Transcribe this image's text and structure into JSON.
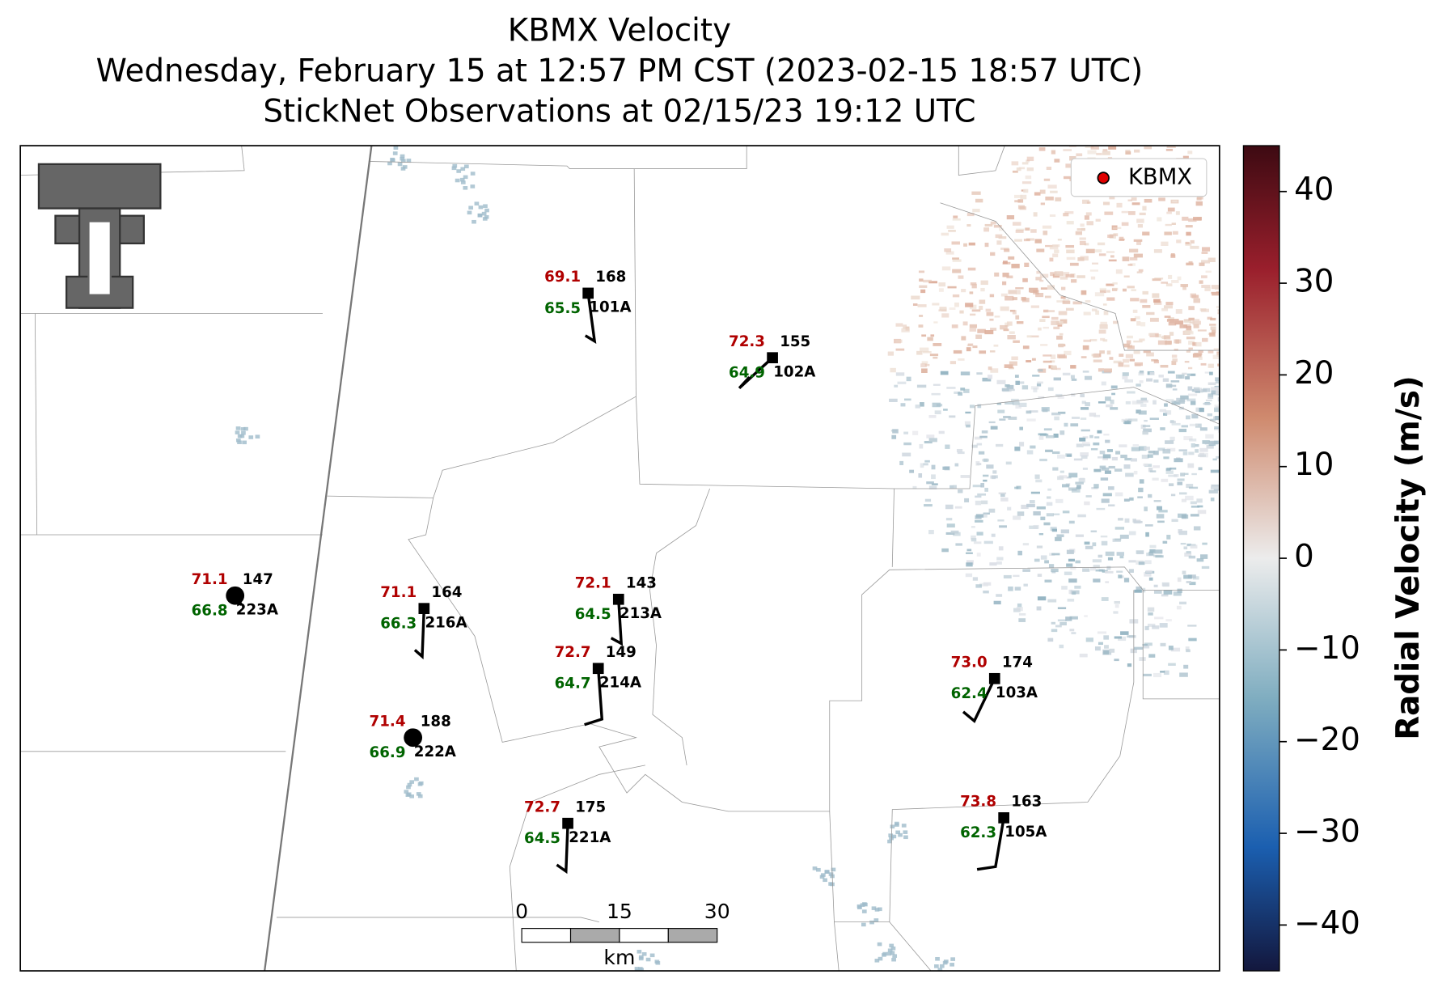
{
  "title": [
    "KBMX Velocity",
    "Wednesday, February 15 at 12:57 PM CST (2023-02-15 18:57 UTC)",
    "StickNet Observations at 02/15/23 19:12 UTC"
  ],
  "legend": {
    "label": "KBMX",
    "color": "#e00000"
  },
  "stations": [
    {
      "id": "101A",
      "temperature": "69.1",
      "dewpoint": "65.5",
      "pressure": "168",
      "marker": "square"
    },
    {
      "id": "102A",
      "temperature": "72.3",
      "dewpoint": "64.9",
      "pressure": "155",
      "marker": "square"
    },
    {
      "id": "223A",
      "temperature": "71.1",
      "dewpoint": "66.8",
      "pressure": "147",
      "marker": "circle"
    },
    {
      "id": "216A",
      "temperature": "71.1",
      "dewpoint": "66.3",
      "pressure": "164",
      "marker": "square"
    },
    {
      "id": "213A",
      "temperature": "72.1",
      "dewpoint": "64.5",
      "pressure": "143",
      "marker": "square"
    },
    {
      "id": "214A",
      "temperature": "72.7",
      "dewpoint": "64.7",
      "pressure": "149",
      "marker": "square"
    },
    {
      "id": "222A",
      "temperature": "71.4",
      "dewpoint": "66.9",
      "pressure": "188",
      "marker": "circle"
    },
    {
      "id": "221A",
      "temperature": "72.7",
      "dewpoint": "64.5",
      "pressure": "175",
      "marker": "square"
    },
    {
      "id": "103A",
      "temperature": "73.0",
      "dewpoint": "62.4",
      "pressure": "174",
      "marker": "square"
    },
    {
      "id": "105A",
      "temperature": "73.8",
      "dewpoint": "62.3",
      "pressure": "163",
      "marker": "square"
    }
  ],
  "scale_bar": {
    "ticks": [
      0,
      15,
      30
    ],
    "unit": "km"
  },
  "colorbar": {
    "label": "Radial Velocity (m/s)",
    "limits": [
      -45,
      45
    ],
    "ticks": [
      {
        "value": -40,
        "label": "−40"
      },
      {
        "value": -30,
        "label": "−30"
      },
      {
        "value": -20,
        "label": "−20"
      },
      {
        "value": -10,
        "label": "−10"
      },
      0,
      10,
      20,
      30,
      40
    ]
  }
}
